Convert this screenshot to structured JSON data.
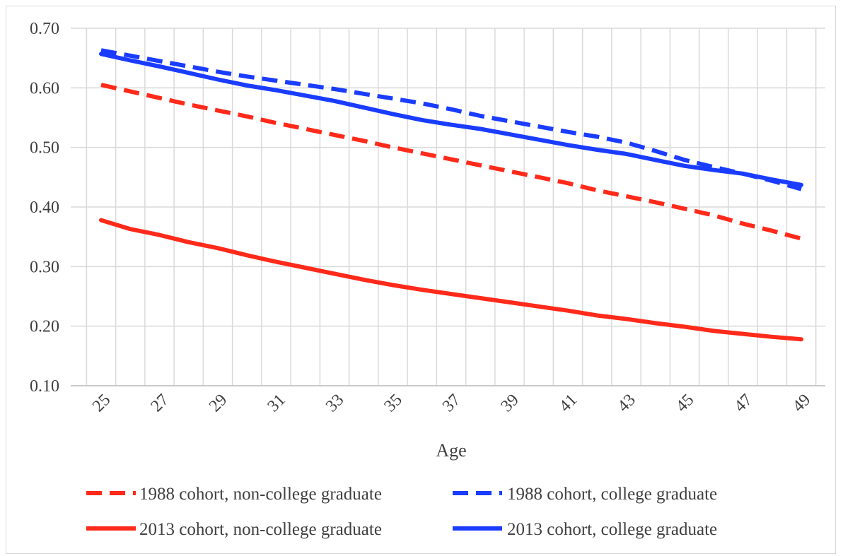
{
  "chart_data": {
    "type": "line",
    "title": "",
    "xlabel": "Age",
    "ylabel": "",
    "ylim": [
      0.1,
      0.7
    ],
    "yticks": [
      "0.10",
      "0.20",
      "0.30",
      "0.40",
      "0.50",
      "0.60",
      "0.70"
    ],
    "x": [
      25,
      26,
      27,
      28,
      29,
      30,
      31,
      32,
      33,
      34,
      35,
      36,
      37,
      38,
      39,
      40,
      41,
      42,
      43,
      44,
      45,
      46,
      47,
      48,
      49
    ],
    "xtick_labels": [
      "25",
      "27",
      "29",
      "31",
      "33",
      "35",
      "37",
      "39",
      "41",
      "43",
      "45",
      "47",
      "49"
    ],
    "grid": "vertical and horizontal",
    "legend_position": "bottom",
    "series": [
      {
        "name": "1988 cohort, non-college graduate",
        "color": "#ff2a1a",
        "style": "dashed",
        "values": [
          0.605,
          0.594,
          0.583,
          0.572,
          0.562,
          0.552,
          0.541,
          0.531,
          0.521,
          0.511,
          0.5,
          0.49,
          0.48,
          0.47,
          0.46,
          0.45,
          0.44,
          0.428,
          0.418,
          0.408,
          0.397,
          0.386,
          0.372,
          0.36,
          0.347
        ]
      },
      {
        "name": "1988 cohort, college graduate",
        "color": "#1a3cff",
        "style": "dashed",
        "values": [
          0.663,
          0.654,
          0.645,
          0.636,
          0.627,
          0.619,
          0.612,
          0.605,
          0.598,
          0.59,
          0.582,
          0.574,
          0.564,
          0.553,
          0.544,
          0.535,
          0.526,
          0.518,
          0.508,
          0.494,
          0.479,
          0.467,
          0.456,
          0.444,
          0.43
        ]
      },
      {
        "name": "2013 cohort, non-college graduate",
        "color": "#ff2a1a",
        "style": "solid",
        "values": [
          0.378,
          0.363,
          0.353,
          0.341,
          0.331,
          0.319,
          0.308,
          0.298,
          0.288,
          0.278,
          0.269,
          0.261,
          0.254,
          0.247,
          0.24,
          0.233,
          0.226,
          0.218,
          0.212,
          0.205,
          0.199,
          0.192,
          0.187,
          0.182,
          0.178
        ]
      },
      {
        "name": "2013 cohort, college graduate",
        "color": "#1a3cff",
        "style": "solid",
        "values": [
          0.657,
          0.646,
          0.636,
          0.625,
          0.614,
          0.604,
          0.596,
          0.587,
          0.578,
          0.567,
          0.556,
          0.546,
          0.538,
          0.531,
          0.522,
          0.513,
          0.504,
          0.496,
          0.489,
          0.479,
          0.469,
          0.462,
          0.456,
          0.446,
          0.437
        ]
      }
    ]
  }
}
